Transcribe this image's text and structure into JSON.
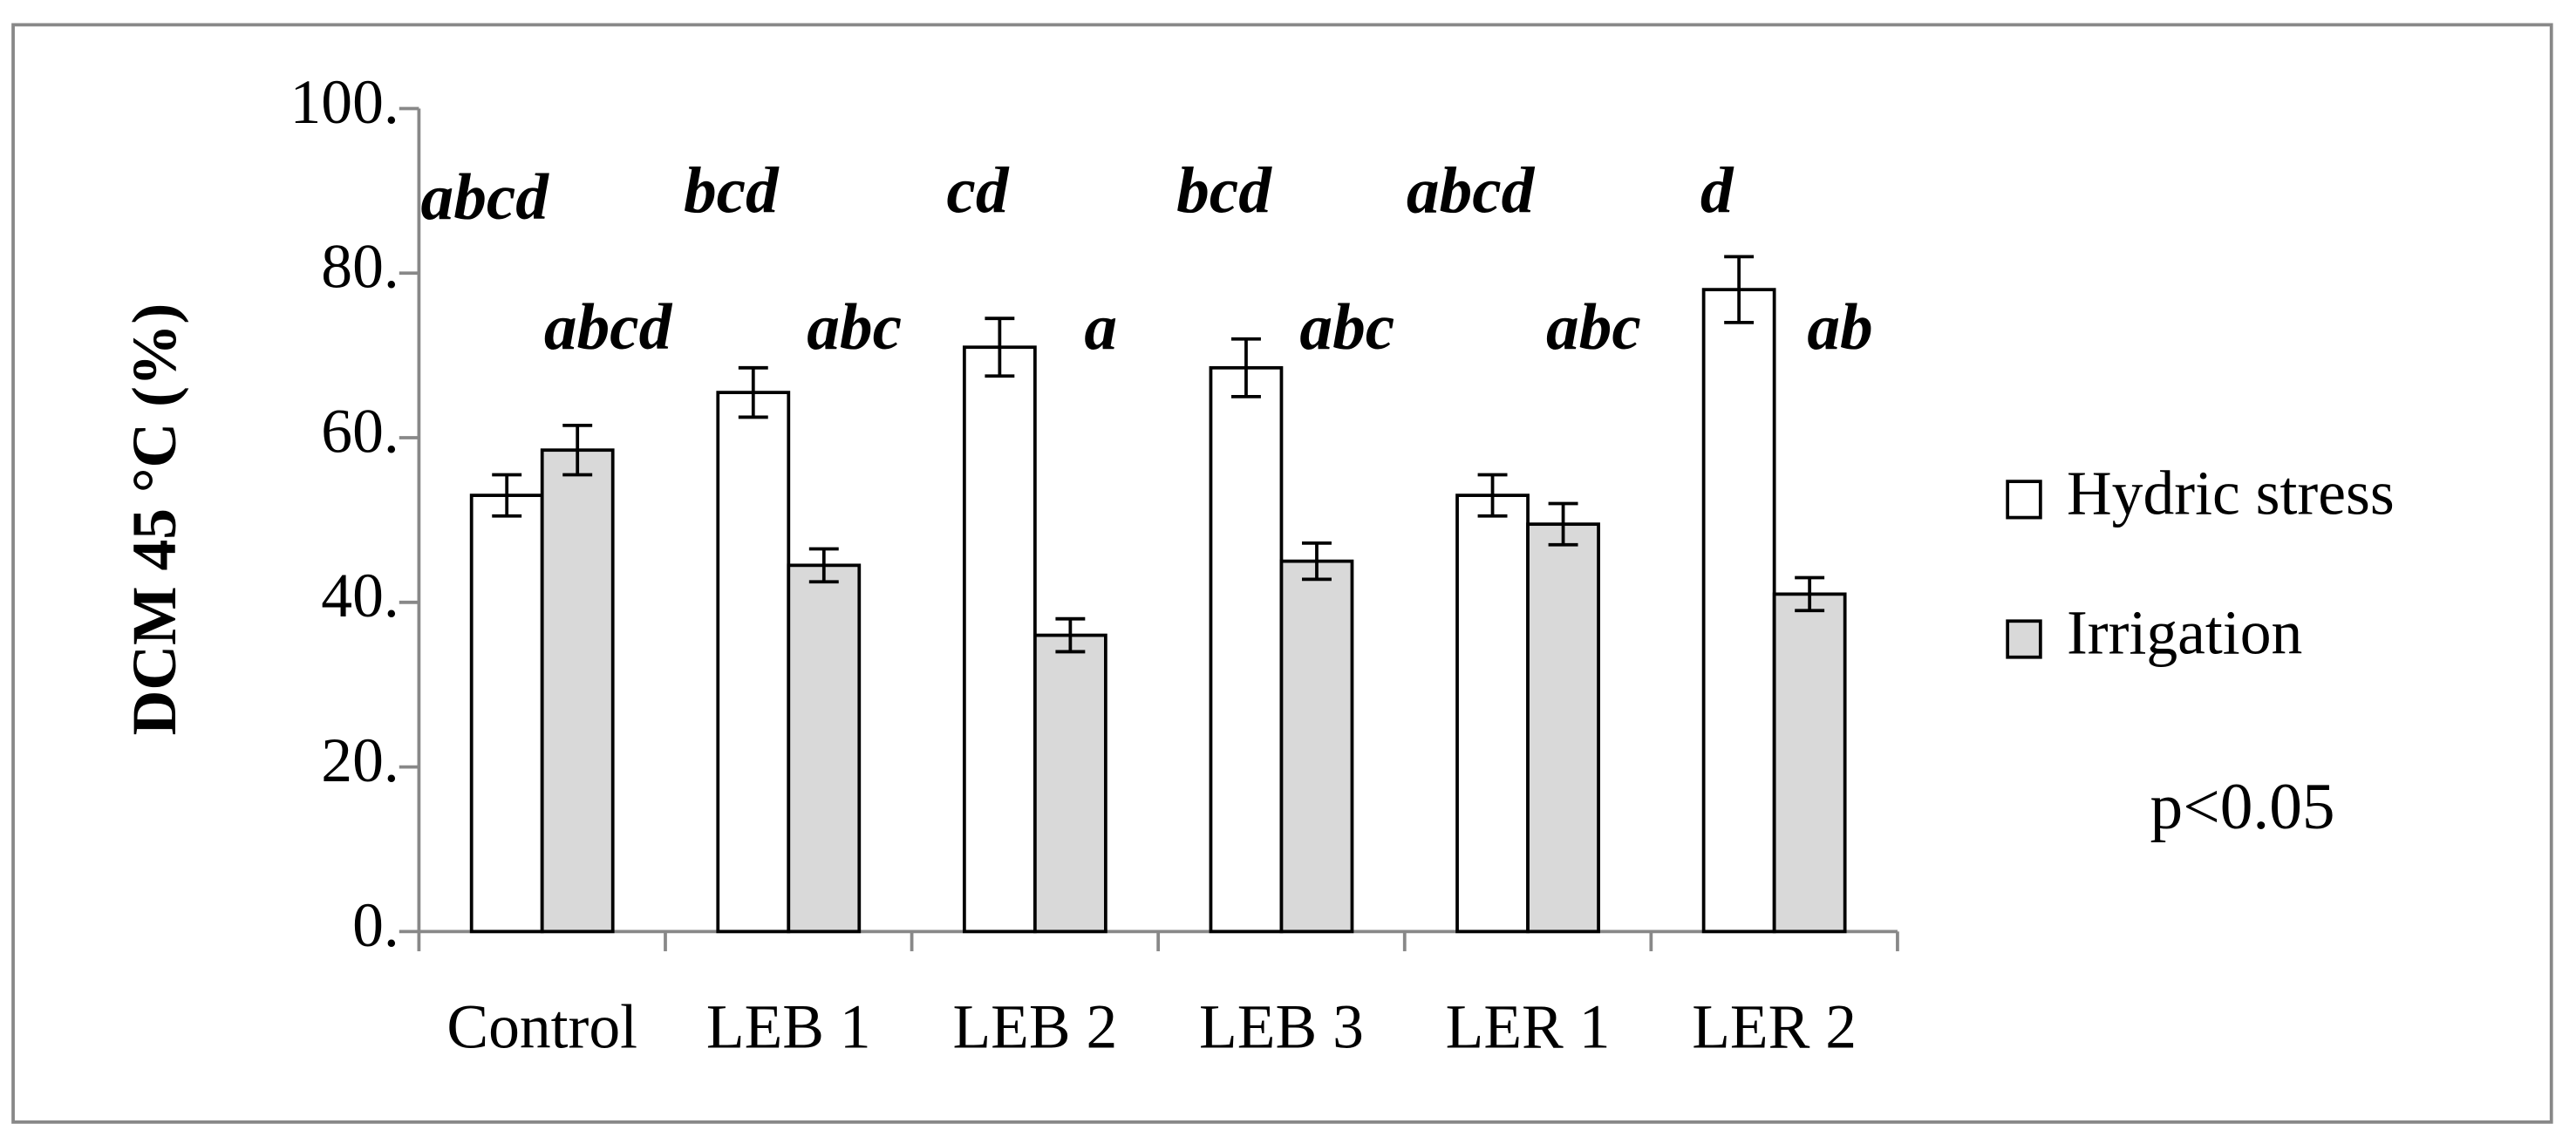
{
  "chart_data": {
    "type": "bar",
    "y_label": "DCM 45 °C (%)",
    "categories": [
      "Control",
      "LEB 1",
      "LEB 2",
      "LEB 3",
      "LER 1",
      "LER 2"
    ],
    "series": [
      {
        "name": "Hydric stress",
        "color": "#ffffff",
        "values": [
          53,
          65.5,
          71,
          68.5,
          53,
          78
        ],
        "errors": [
          2.5,
          3,
          3.5,
          3.5,
          2.5,
          4
        ],
        "letters": [
          "abcd",
          "bcd",
          "cd",
          "bcd",
          "abcd",
          "d"
        ]
      },
      {
        "name": "Irrigation",
        "color": "#d9d9d9",
        "values": [
          58.5,
          44.5,
          36,
          45,
          49.5,
          41
        ],
        "errors": [
          3,
          2,
          2,
          2.2,
          2.5,
          2
        ],
        "letters": [
          "abcd",
          "abc",
          "a",
          "abc",
          "abc",
          "ab"
        ]
      }
    ],
    "annotation": "p<0.05",
    "ylim": [
      0,
      100
    ],
    "yticks": [
      {
        "value": 0,
        "label": "0."
      },
      {
        "value": 20,
        "label": "20."
      },
      {
        "value": 40,
        "label": "40."
      },
      {
        "value": 60,
        "label": "60."
      },
      {
        "value": 80,
        "label": "80."
      },
      {
        "value": 100,
        "label": "100."
      }
    ],
    "grid": false
  }
}
